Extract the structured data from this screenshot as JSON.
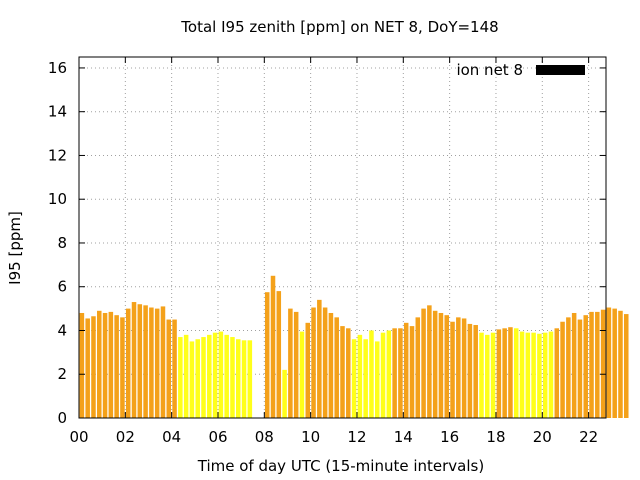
{
  "chart_data": {
    "type": "bar",
    "title": "Total I95 zenith [ppm] on NET 8, DoY=148",
    "xlabel": "Time of day UTC (15-minute intervals)",
    "ylabel": "I95 [ppm]",
    "ylim": [
      0,
      16.5
    ],
    "xlim": [
      0,
      22.75
    ],
    "x_ticks": [
      "00",
      "02",
      "04",
      "06",
      "08",
      "10",
      "12",
      "14",
      "16",
      "18",
      "20",
      "22"
    ],
    "y_ticks": [
      "0",
      "2",
      "4",
      "6",
      "8",
      "10",
      "12",
      "14",
      "16"
    ],
    "grid": true,
    "legend": {
      "label": "ion net 8",
      "position": "top-right",
      "color": "#000000"
    },
    "interval_hours": 0.25,
    "colors": {
      "orange": "#f4a11a",
      "yellow": "#ffff1a"
    },
    "values": [
      4.8,
      4.55,
      4.65,
      4.9,
      4.8,
      4.85,
      4.7,
      4.6,
      5.0,
      5.3,
      5.2,
      5.15,
      5.05,
      5.0,
      5.1,
      4.5,
      4.5,
      3.7,
      3.8,
      3.5,
      3.6,
      3.7,
      3.8,
      3.9,
      3.95,
      3.8,
      3.7,
      3.6,
      3.55,
      3.55,
      null,
      null,
      5.75,
      6.5,
      5.8,
      2.2,
      5.0,
      4.85,
      3.95,
      4.35,
      5.05,
      5.4,
      5.05,
      4.8,
      4.6,
      4.2,
      4.1,
      3.6,
      3.8,
      3.6,
      4.0,
      3.5,
      3.9,
      4.0,
      4.1,
      4.1,
      4.35,
      4.2,
      4.6,
      5.0,
      5.15,
      4.9,
      4.8,
      4.7,
      4.4,
      4.6,
      4.55,
      4.3,
      4.25,
      3.9,
      3.8,
      3.9,
      4.05,
      4.1,
      4.15,
      4.1,
      3.95,
      3.9,
      3.9,
      3.85,
      3.9,
      3.95,
      4.1,
      4.4,
      4.6,
      4.8,
      4.5,
      4.7,
      4.85,
      4.85,
      4.95,
      5.05,
      5.0,
      4.9,
      4.75
    ],
    "bar_colors": [
      "orange",
      "orange",
      "orange",
      "orange",
      "orange",
      "orange",
      "orange",
      "orange",
      "orange",
      "orange",
      "orange",
      "orange",
      "orange",
      "orange",
      "orange",
      "orange",
      "orange",
      "yellow",
      "yellow",
      "yellow",
      "yellow",
      "yellow",
      "yellow",
      "yellow",
      "yellow",
      "yellow",
      "yellow",
      "yellow",
      "yellow",
      "yellow",
      "none",
      "none",
      "orange",
      "orange",
      "orange",
      "yellow",
      "orange",
      "orange",
      "yellow",
      "orange",
      "orange",
      "orange",
      "orange",
      "orange",
      "orange",
      "orange",
      "orange",
      "yellow",
      "yellow",
      "yellow",
      "yellow",
      "yellow",
      "yellow",
      "yellow",
      "orange",
      "orange",
      "orange",
      "orange",
      "orange",
      "orange",
      "orange",
      "orange",
      "orange",
      "orange",
      "orange",
      "orange",
      "orange",
      "orange",
      "orange",
      "yellow",
      "yellow",
      "yellow",
      "orange",
      "orange",
      "orange",
      "yellow",
      "yellow",
      "yellow",
      "yellow",
      "yellow",
      "yellow",
      "yellow",
      "orange",
      "orange",
      "orange",
      "orange",
      "orange",
      "orange",
      "orange",
      "orange",
      "orange",
      "orange",
      "orange",
      "orange",
      "orange"
    ]
  }
}
